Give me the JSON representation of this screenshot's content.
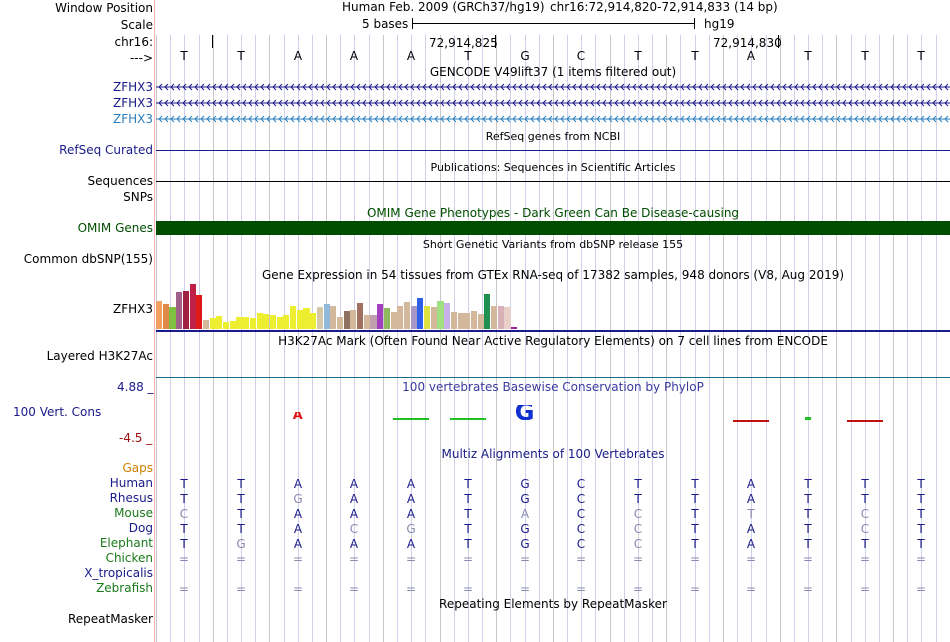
{
  "header": {
    "window_position_label": "Window Position",
    "assembly": "Human Feb. 2009 (GRCh37/hg19)",
    "position": "chr16:72,914,820-72,914,833 (14 bp)",
    "scale_label": "Scale",
    "scale_text": "5 bases",
    "scale_db": "hg19",
    "chrom_label": "chr16:",
    "coord1": "72,914,825",
    "coord2": "72,914,830",
    "strand_label": "--->"
  },
  "sequence": [
    "T",
    "T",
    "A",
    "A",
    "A",
    "T",
    "G",
    "C",
    "T",
    "T",
    "A",
    "T",
    "T",
    "T"
  ],
  "gencode": {
    "title": "GENCODE V49lift37 (1 items filtered out)",
    "genes": [
      {
        "label": "ZFHX3",
        "color": "#1a1a8a"
      },
      {
        "label": "ZFHX3",
        "color": "#1a1a8a"
      },
      {
        "label": "ZFHX3",
        "color": "#2b7fbf"
      }
    ]
  },
  "refseq": {
    "title": "RefSeq genes from NCBI",
    "label": "RefSeq Curated"
  },
  "publications": {
    "title": "Publications: Sequences in Scientific Articles",
    "label": "Sequences"
  },
  "snps_label": "SNPs",
  "omim": {
    "title": "OMIM Gene Phenotypes - Dark Green Can Be Disease-causing",
    "label": "OMIM Genes",
    "color": "#004d00"
  },
  "dbsnp": {
    "title": "Short Genetic Variants from dbSNP release 155",
    "label": "Common dbSNP(155)"
  },
  "gtex": {
    "title": "Gene Expression in 54 tissues from GTEx RNA-seq of 17382 samples, 948 donors (V8, Aug 2019)",
    "label": "ZFHX3",
    "values": [
      0.62,
      0.55,
      0.48,
      0.82,
      0.84,
      1.0,
      0.75,
      0.2,
      0.25,
      0.28,
      0.15,
      0.18,
      0.26,
      0.26,
      0.25,
      0.35,
      0.34,
      0.32,
      0.26,
      0.3,
      0.5,
      0.42,
      0.46,
      0.36,
      0.48,
      0.55,
      0.52,
      0.26,
      0.4,
      0.42,
      0.58,
      0.32,
      0.3,
      0.55,
      0.46,
      0.37,
      0.5,
      0.6,
      0.5,
      0.7,
      0.5,
      0.48,
      0.62,
      0.58,
      0.38,
      0.36,
      0.36,
      0.4,
      0.33,
      0.78,
      0.5,
      0.52,
      0.48,
      0.05
    ],
    "colors": [
      "#f0a060",
      "#e08848",
      "#80c040",
      "#a06088",
      "#a02040",
      "#c02048",
      "#e01818",
      "#d4b89c",
      "#eeee30",
      "#eeee30",
      "#eeee30",
      "#eeee30",
      "#eeee30",
      "#eeee30",
      "#eeee30",
      "#eeee30",
      "#eeee30",
      "#eeee30",
      "#eeee30",
      "#eeee30",
      "#eeee30",
      "#eeee30",
      "#eeee30",
      "#eeee30",
      "#d4c8a8",
      "#90b8d8",
      "#d4b89c",
      "#d4b89c",
      "#907060",
      "#d4b89c",
      "#a07060",
      "#d4b89c",
      "#c0a0b0",
      "#a040c0",
      "#90b860",
      "#d4b89c",
      "#d4b89c",
      "#d4b89c",
      "#a898c8",
      "#3060e8",
      "#e0e040",
      "#d4b89c",
      "#a0e080",
      "#c8b0e8",
      "#d4b89c",
      "#d4b89c",
      "#d4b89c",
      "#d4b89c",
      "#d4b89c",
      "#209050",
      "#d4b89c",
      "#d8b0b8",
      "#e8d0c8",
      "#a020a0"
    ]
  },
  "h3k27ac": {
    "title": "H3K27Ac Mark (Often Found Near Active Regulatory Elements) on 7 cell lines from ENCODE",
    "label": "Layered H3K27Ac"
  },
  "phylop": {
    "title": "100 vertebrates Basewise Conservation by PhyloP",
    "label": "100 Vert. Cons",
    "max": "4.88 _",
    "min": "-4.5 _",
    "values": [
      0,
      0,
      1.35,
      0,
      0.1,
      0.25,
      2.55,
      0,
      0,
      0,
      -0.35,
      0.55,
      -0.45,
      0
    ]
  },
  "multiz": {
    "title": "Multiz Alignments of 100 Vertebrates",
    "gaps_label": "Gaps",
    "species": [
      {
        "name": "Human",
        "color": "#1a1a8a",
        "bases": [
          "T",
          "T",
          "A",
          "A",
          "A",
          "T",
          "G",
          "C",
          "T",
          "T",
          "A",
          "T",
          "T",
          "T"
        ],
        "faded": []
      },
      {
        "name": "Rhesus",
        "color": "#1a1a8a",
        "bases": [
          "T",
          "T",
          "G",
          "A",
          "A",
          "T",
          "G",
          "C",
          "T",
          "T",
          "A",
          "T",
          "T",
          "T"
        ],
        "faded": [
          2
        ]
      },
      {
        "name": "Mouse",
        "color": "#1a7a1a",
        "bases": [
          "C",
          "T",
          "A",
          "A",
          "A",
          "T",
          "A",
          "C",
          "C",
          "T",
          "T",
          "T",
          "C",
          "T"
        ],
        "faded": [
          0,
          6,
          8,
          10,
          12
        ]
      },
      {
        "name": "Dog",
        "color": "#1a1a8a",
        "bases": [
          "T",
          "T",
          "A",
          "C",
          "G",
          "T",
          "G",
          "C",
          "C",
          "T",
          "A",
          "T",
          "C",
          "T"
        ],
        "faded": [
          3,
          4,
          8,
          12
        ]
      },
      {
        "name": "Elephant",
        "color": "#1a7a1a",
        "bases": [
          "T",
          "G",
          "A",
          "A",
          "A",
          "T",
          "G",
          "C",
          "C",
          "T",
          "A",
          "T",
          "T",
          "T"
        ],
        "faded": [
          1,
          8
        ]
      },
      {
        "name": "Chicken",
        "color": "#1a7a1a",
        "bases": [
          "=",
          "=",
          "=",
          "=",
          "=",
          "=",
          "=",
          "=",
          "=",
          "=",
          "=",
          "=",
          "=",
          "="
        ],
        "faded": [
          0,
          1,
          2,
          3,
          4,
          5,
          6,
          7,
          8,
          9,
          10,
          11,
          12,
          13
        ]
      },
      {
        "name": "X_tropicalis",
        "color": "#1a1a8a",
        "bases": [
          "",
          "",
          "",
          "",
          "",
          "",
          "",
          "",
          "",
          "",
          "",
          "",
          "",
          ""
        ],
        "faded": []
      },
      {
        "name": "Zebrafish",
        "color": "#1a7a1a",
        "bases": [
          "=",
          "=",
          "=",
          "=",
          "=",
          "=",
          "=",
          "=",
          "=",
          "=",
          "=",
          "=",
          "=",
          "="
        ],
        "faded": [
          0,
          1,
          2,
          3,
          4,
          5,
          6,
          7,
          8,
          9,
          10,
          11,
          12,
          13
        ]
      }
    ]
  },
  "repeatmasker": {
    "title": "Repeating Elements by RepeatMasker",
    "label": "RepeatMasker"
  },
  "colors": {
    "label_blue": "#1a1a8a",
    "label_orange": "#d08000",
    "label_green": "#1a7a1a",
    "phylop_blue": "#3a3aa0",
    "phylop_max": "#1a1a8a",
    "phylop_min": "#a01010",
    "grid": "#d0d0ea",
    "panel_border": "#ff9999"
  }
}
